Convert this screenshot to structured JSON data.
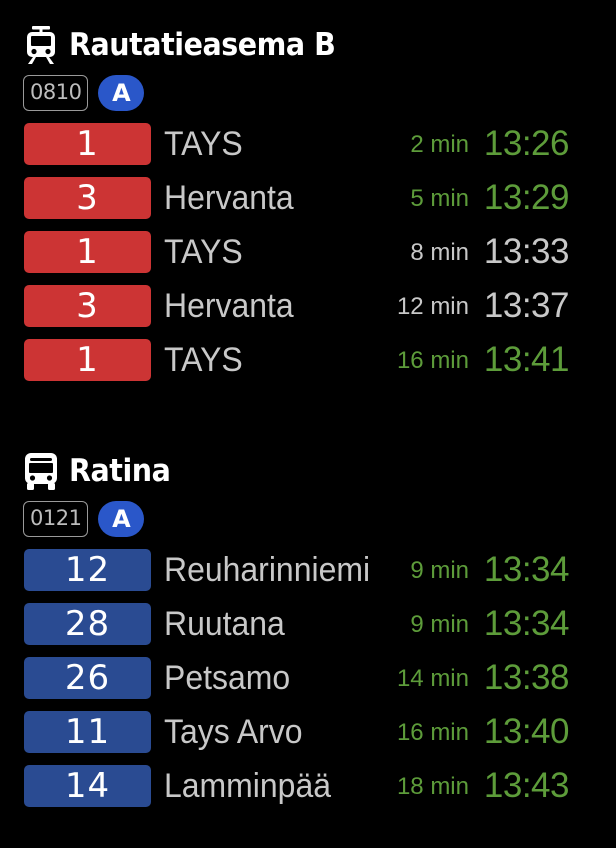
{
  "colors": {
    "background": "#000000",
    "tram_route": "#cc3434",
    "bus_route": "#2a4b92",
    "zone_badge": "#2a57c9",
    "realtime_text": "#5d9c3a",
    "scheduled_text": "#c8c8c8"
  },
  "stops": [
    {
      "icon": "tram-icon",
      "name": "Rautatieasema B",
      "code": "0810",
      "zone": "A",
      "departures": [
        {
          "route": "1",
          "destination": "TAYS",
          "minutes": "2 min",
          "time": "13:26",
          "realtime": true
        },
        {
          "route": "3",
          "destination": "Hervanta",
          "minutes": "5 min",
          "time": "13:29",
          "realtime": true
        },
        {
          "route": "1",
          "destination": "TAYS",
          "minutes": "8 min",
          "time": "13:33",
          "realtime": false
        },
        {
          "route": "3",
          "destination": "Hervanta",
          "minutes": "12 min",
          "time": "13:37",
          "realtime": false
        },
        {
          "route": "1",
          "destination": "TAYS",
          "minutes": "16 min",
          "time": "13:41",
          "realtime": true
        }
      ]
    },
    {
      "icon": "bus-icon",
      "name": "Ratina",
      "code": "0121",
      "zone": "A",
      "departures": [
        {
          "route": "12",
          "destination": "Reuharinniemi",
          "minutes": "9 min",
          "time": "13:34",
          "realtime": true
        },
        {
          "route": "28",
          "destination": "Ruutana",
          "minutes": "9 min",
          "time": "13:34",
          "realtime": true
        },
        {
          "route": "26",
          "destination": "Petsamo",
          "minutes": "14 min",
          "time": "13:38",
          "realtime": true
        },
        {
          "route": "11",
          "destination": "Tays Arvo",
          "minutes": "16 min",
          "time": "13:40",
          "realtime": true
        },
        {
          "route": "14",
          "destination": "Lamminpää",
          "minutes": "18 min",
          "time": "13:43",
          "realtime": true
        }
      ]
    }
  ]
}
